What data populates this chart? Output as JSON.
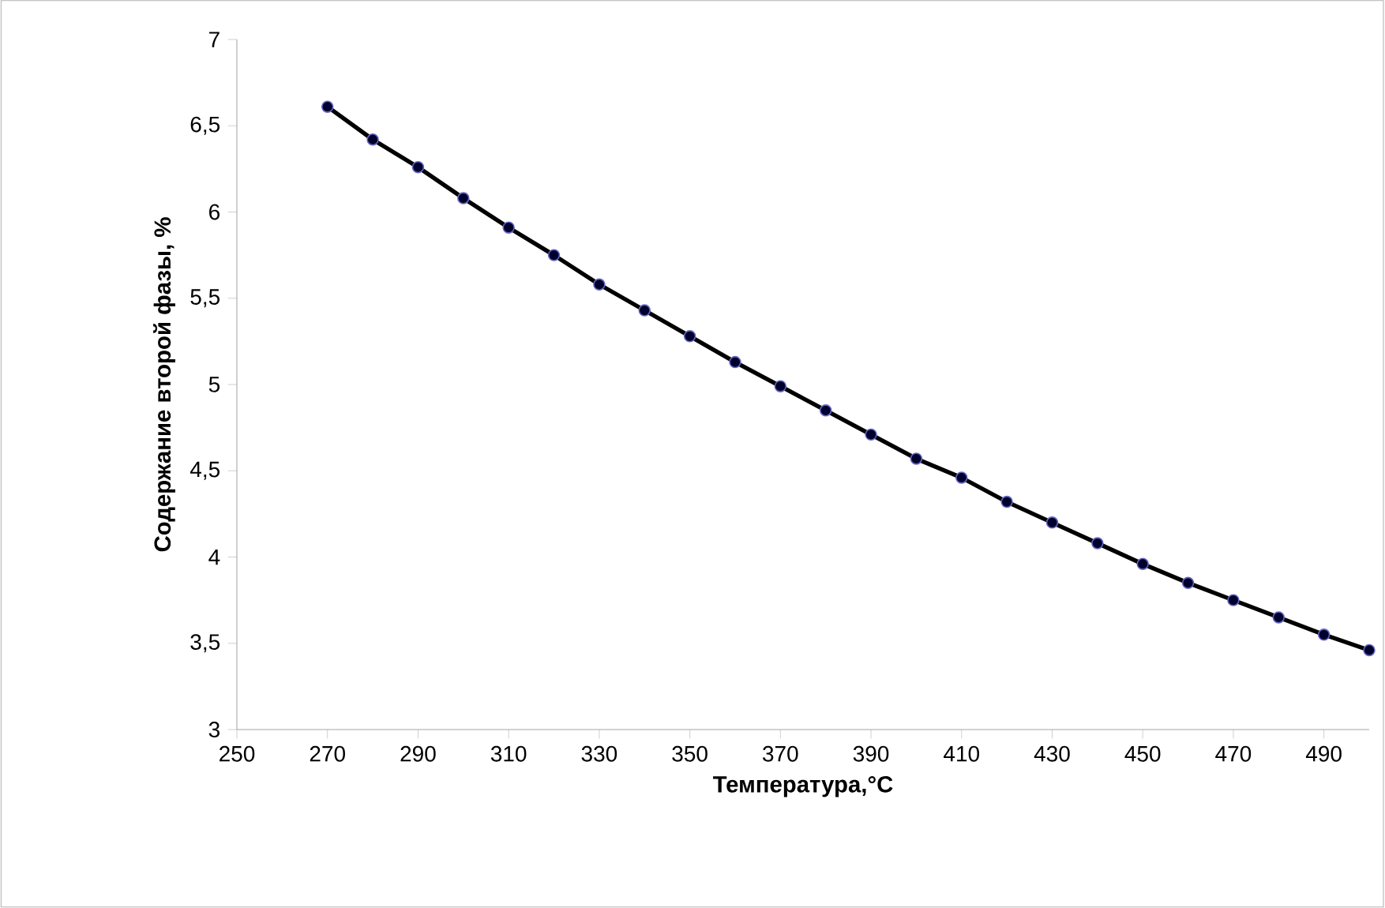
{
  "chart_data": {
    "type": "line",
    "xlabel": "Температура,°C",
    "ylabel": "Содержание второй фазы, %",
    "x": [
      270,
      280,
      290,
      300,
      310,
      320,
      330,
      340,
      350,
      360,
      370,
      380,
      390,
      400,
      410,
      420,
      430,
      440,
      450,
      460,
      470,
      480,
      490,
      500
    ],
    "series": [
      {
        "color": "#000000",
        "values": [
          6.61,
          6.42,
          6.26,
          6.08,
          5.91,
          5.75,
          5.58,
          5.43,
          5.28,
          5.13,
          4.99,
          4.85,
          4.71,
          4.57,
          4.46,
          4.32,
          4.2,
          4.08,
          3.96,
          3.85,
          3.75,
          3.65,
          3.55,
          3.46
        ]
      }
    ],
    "xlim": [
      250,
      500
    ],
    "ylim": [
      3,
      7
    ],
    "xticks": [
      250,
      270,
      290,
      310,
      330,
      350,
      370,
      390,
      410,
      430,
      450,
      470,
      490
    ],
    "yticks": [
      3,
      {
        "value": 3.5,
        "label": "3,5"
      },
      4,
      {
        "value": 4.5,
        "label": "4,5"
      },
      5,
      {
        "value": 5.5,
        "label": "5,5"
      },
      6,
      {
        "value": 6.5,
        "label": "6,5"
      },
      7
    ],
    "grid": false,
    "marker": "circle",
    "line_style": "solid"
  }
}
